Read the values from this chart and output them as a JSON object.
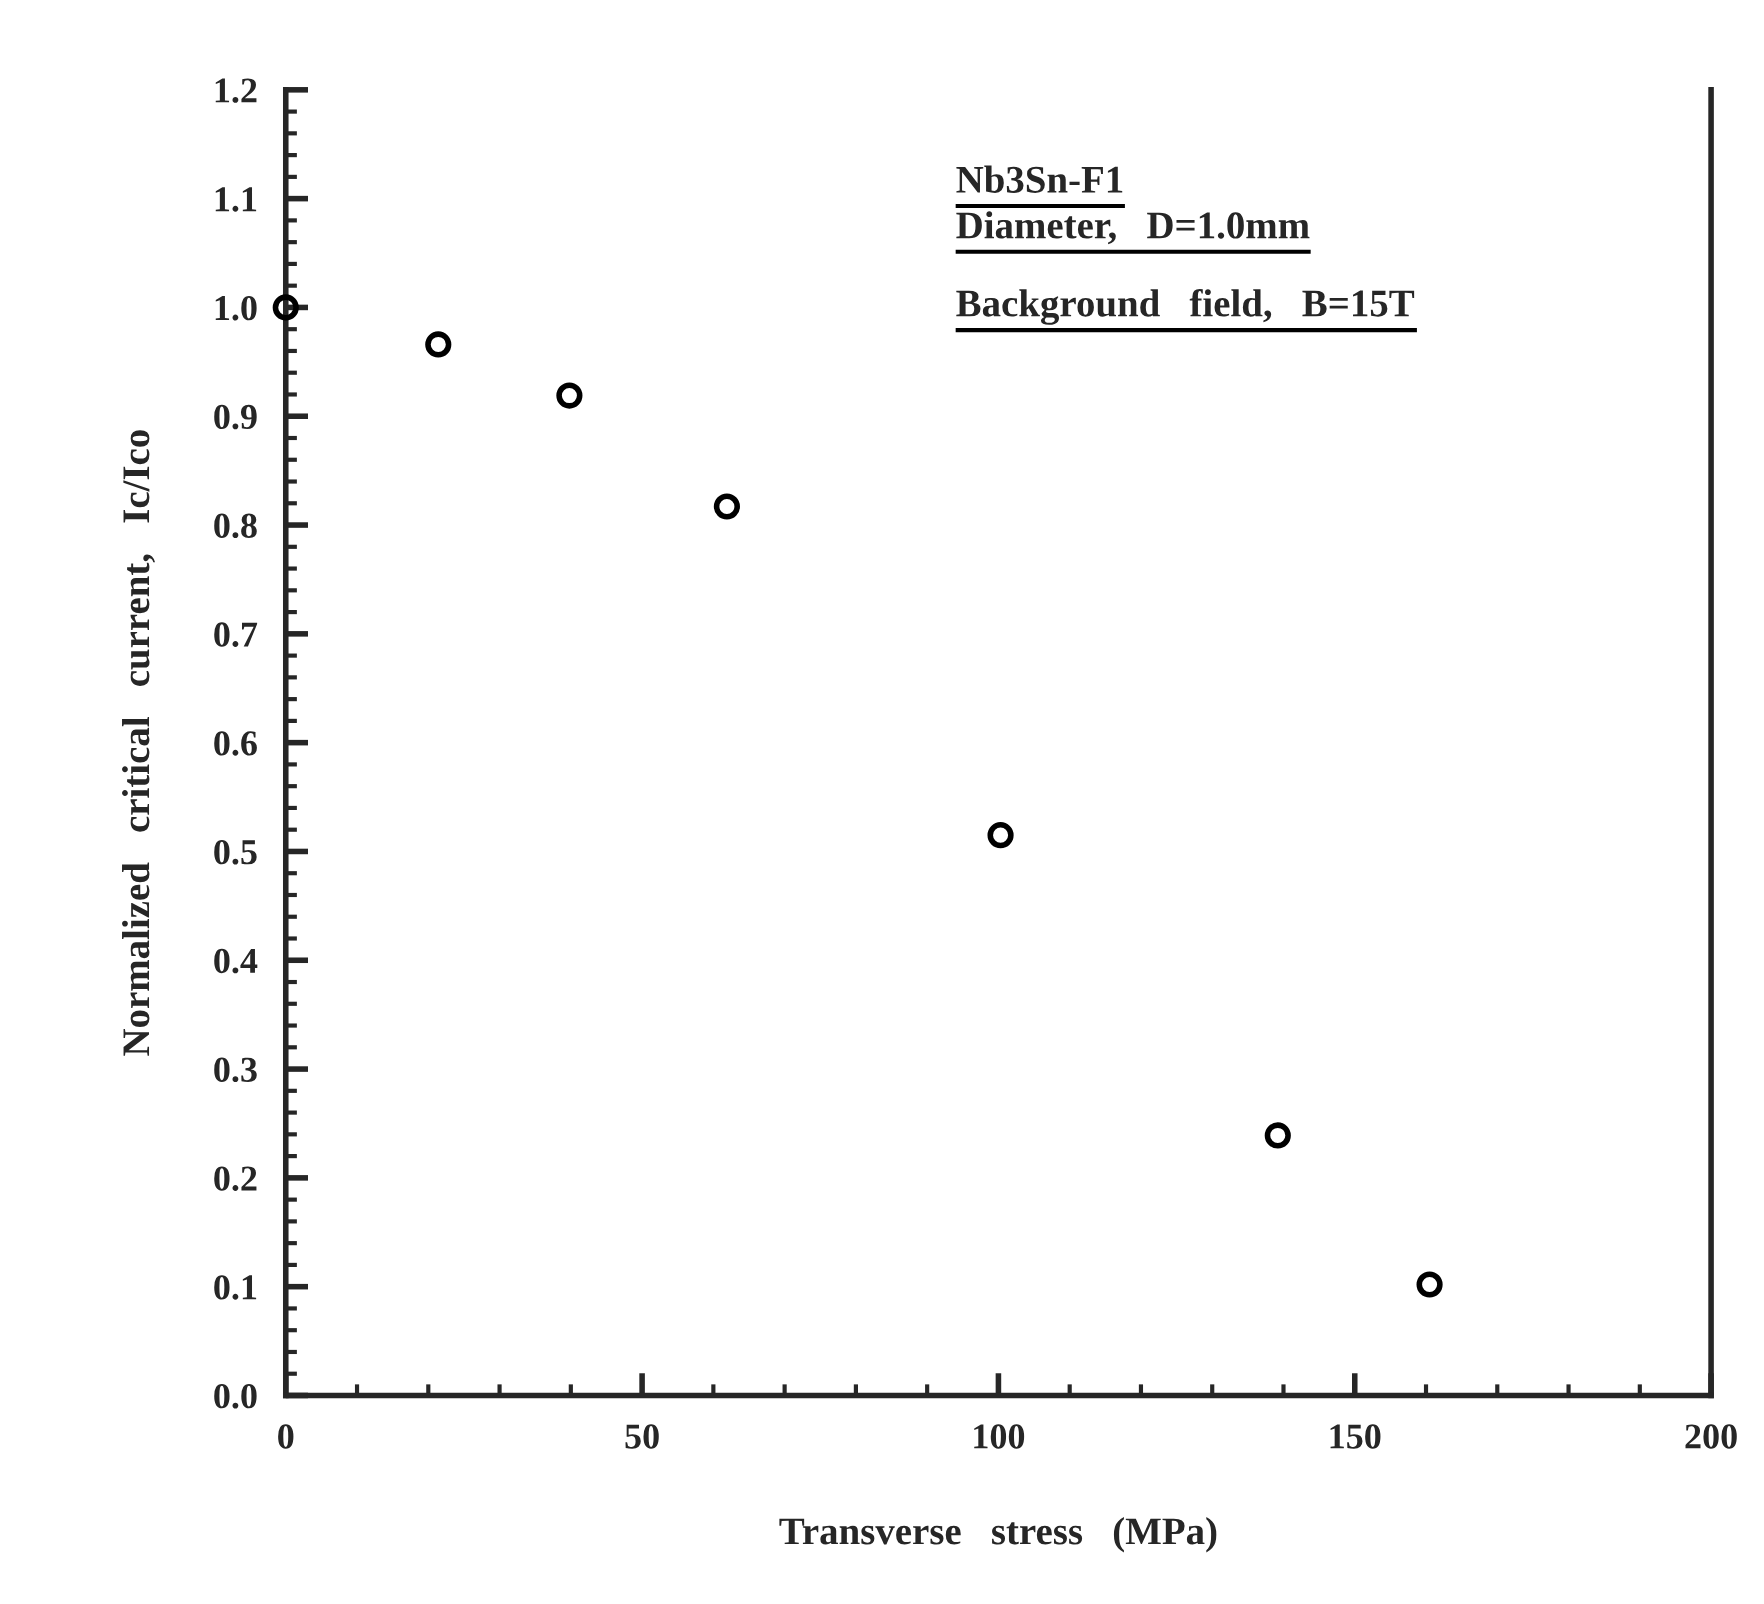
{
  "chart_data": {
    "type": "scatter",
    "xlabel": "Transverse   stress   (MPa)",
    "ylabel": "Normalized   critical   current,   Ic/Ico",
    "annotations": [
      "Nb3Sn-F1",
      "Diameter,   D=1.0mm",
      "Background   field,   B=15T"
    ],
    "x": [
      0,
      21.4,
      39.8,
      61.9,
      100.3,
      139.2,
      160.5
    ],
    "series": [
      {
        "color": "#000000",
        "values": [
          1.0,
          0.966,
          0.919,
          0.817,
          0.515,
          0.239,
          0.102
        ]
      }
    ],
    "marker": "circle",
    "xlim": [
      0,
      200
    ],
    "xticks": [
      0,
      50,
      100,
      150,
      200
    ],
    "ylim": [
      0,
      1.2
    ],
    "yticks": [
      {
        "value": 0,
        "label": "0.0"
      },
      0.1,
      0.2,
      0.3,
      0.4,
      0.5,
      0.6,
      0.7,
      0.8,
      0.9,
      {
        "value": 1.0,
        "label": "1.0"
      },
      1.1,
      1.2
    ],
    "grid": false
  }
}
